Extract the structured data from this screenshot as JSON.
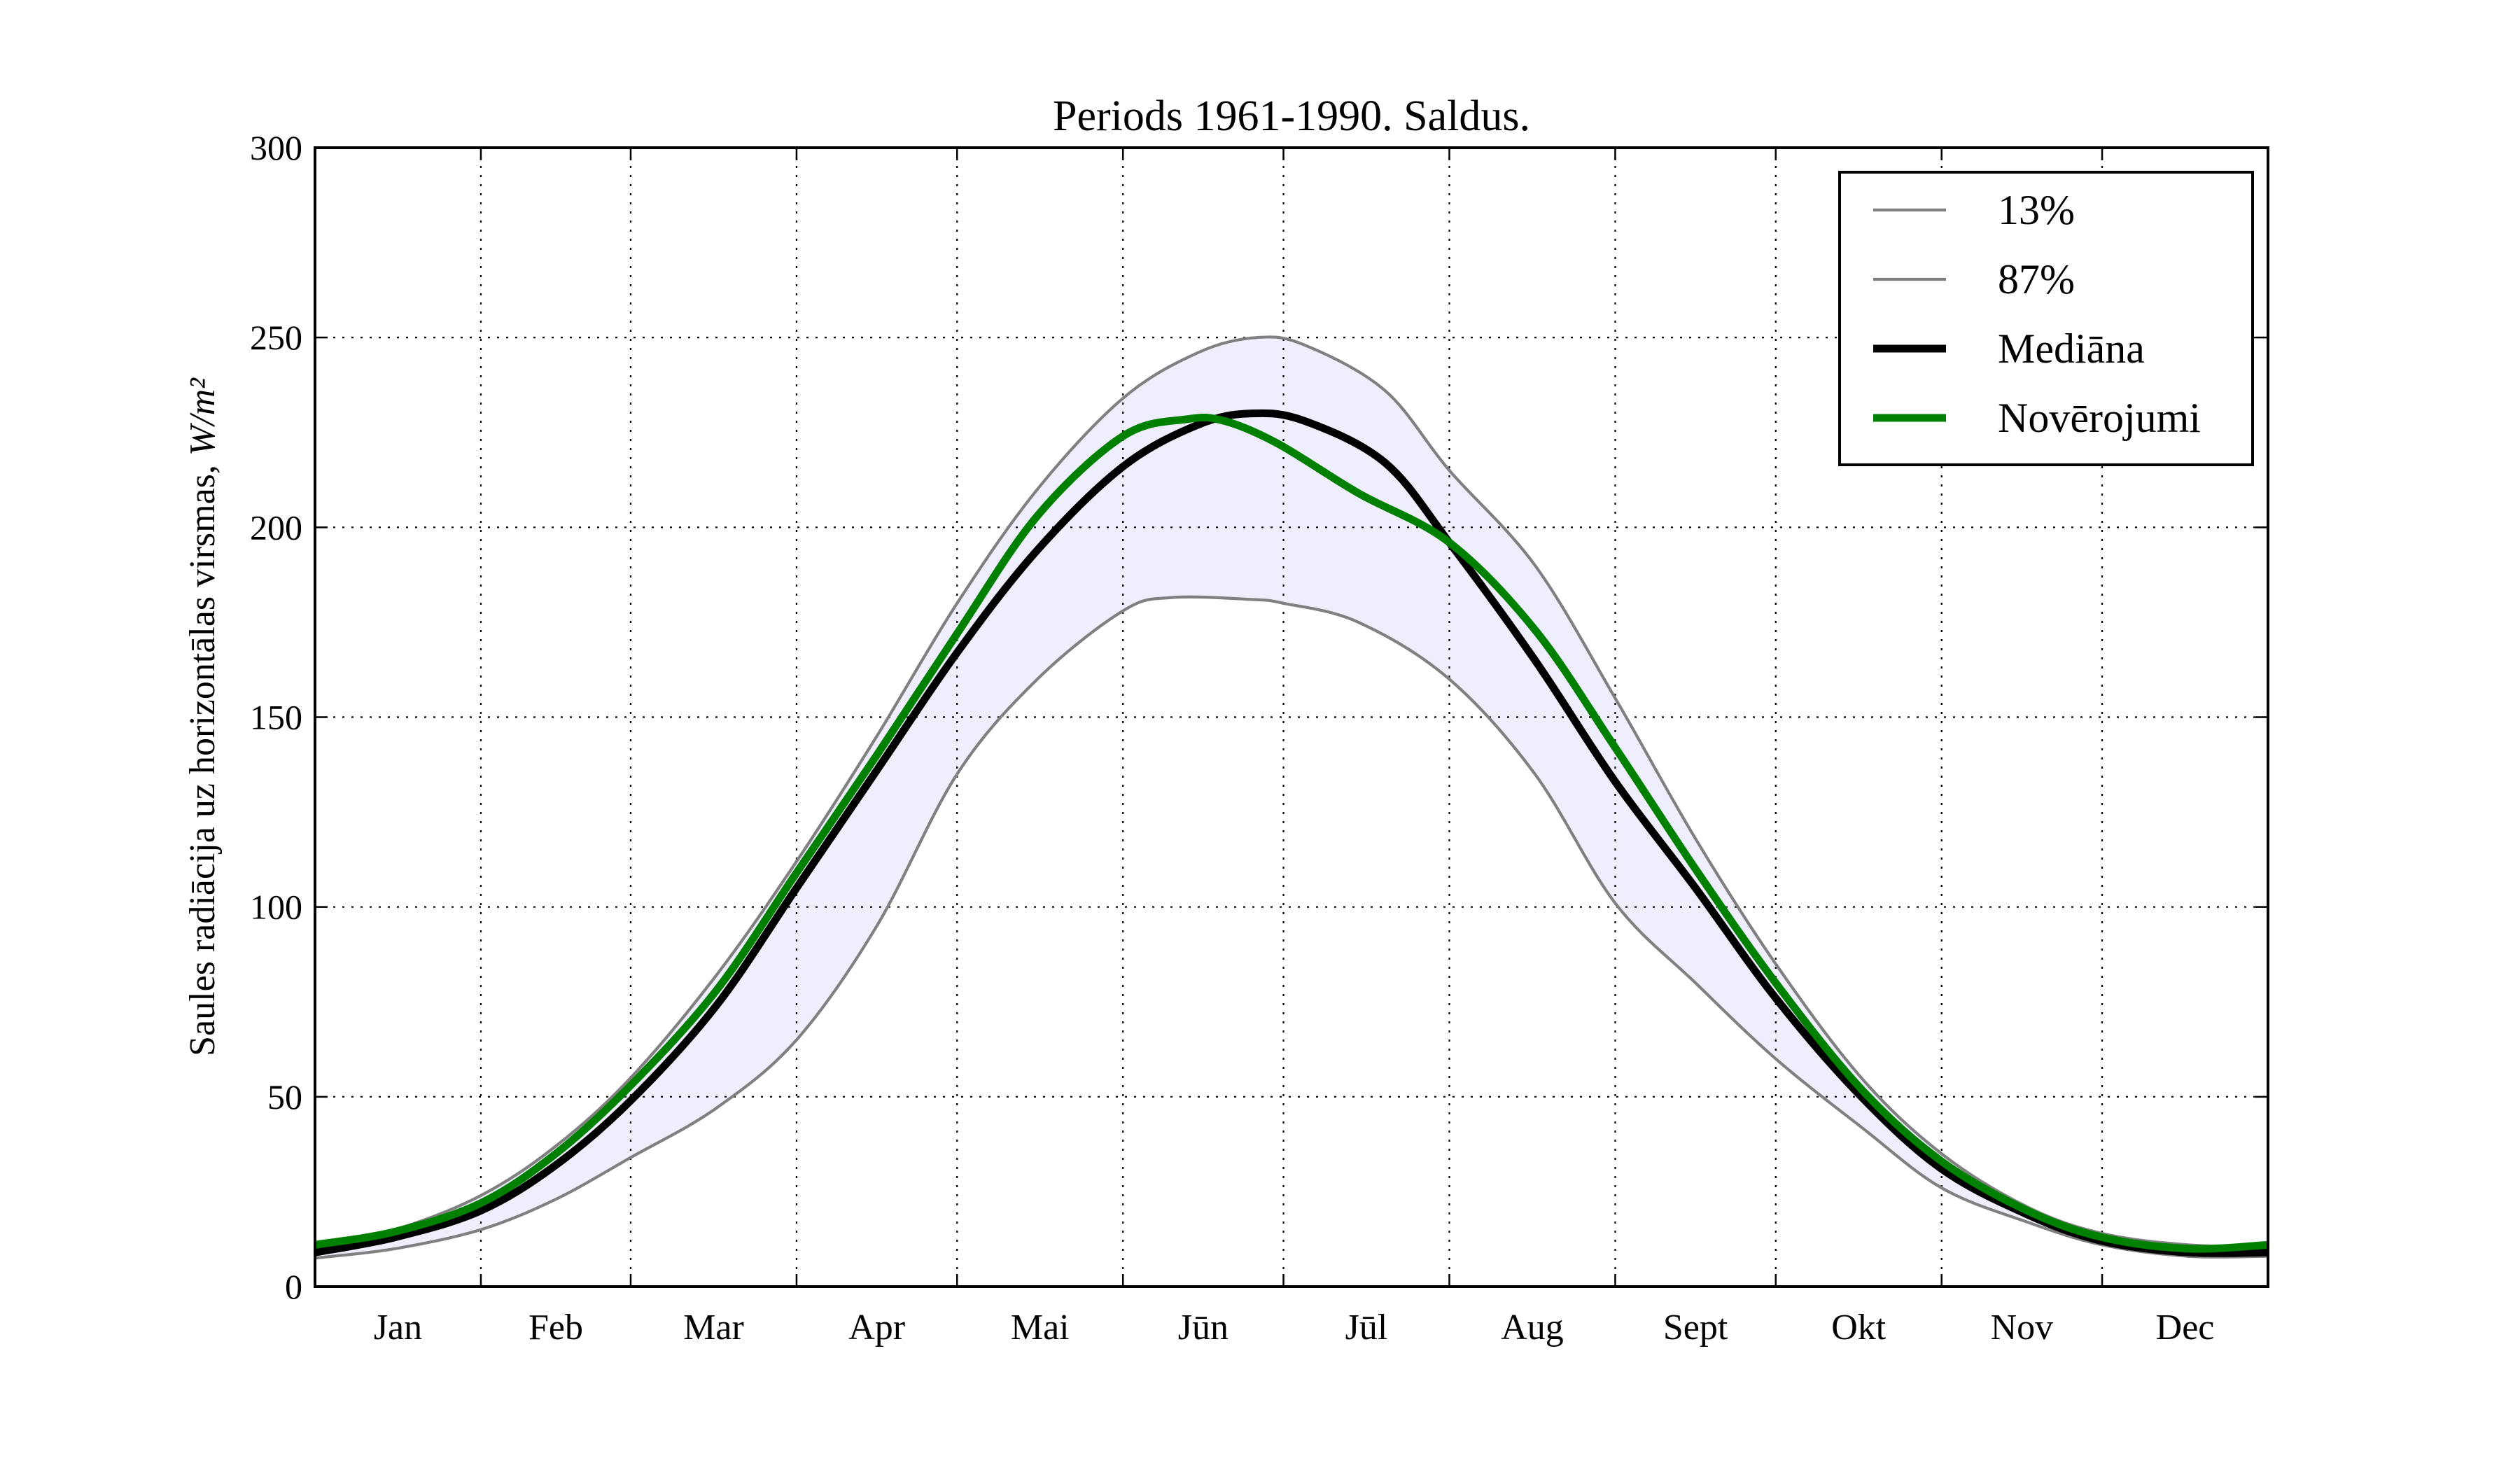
{
  "chart_data": {
    "type": "line",
    "title": "Periods 1961-1990. Saldus.",
    "xlabel": "",
    "ylabel": "Saules radiācija uz horizontālas virsmas, ",
    "ylabel_unit": "W/m²",
    "x_unit": "day of year",
    "xlim": [
      0,
      365
    ],
    "ylim": [
      0,
      300
    ],
    "yticks": [
      0,
      50,
      100,
      150,
      200,
      250,
      300
    ],
    "month_boundaries": [
      0,
      31,
      59,
      90,
      120,
      151,
      181,
      212,
      243,
      273,
      304,
      334,
      365
    ],
    "month_labels": [
      "Jan",
      "Feb",
      "Mar",
      "Apr",
      "Mai",
      "Jūn",
      "Jūl",
      "Aug",
      "Sept",
      "Okt",
      "Nov",
      "Dec"
    ],
    "grid": true,
    "legend_position": "top-right",
    "band": {
      "between": [
        "13%",
        "87%"
      ],
      "color": "#eeeefc"
    },
    "series": [
      {
        "name": "13%",
        "color": "#808080",
        "style": "thin",
        "x": [
          0,
          15,
          31,
          45,
          59,
          75,
          90,
          105,
          120,
          135,
          151,
          160,
          175,
          181,
          195,
          212,
          228,
          243,
          258,
          273,
          289,
          304,
          320,
          334,
          350,
          365
        ],
        "y": [
          7.5,
          10,
          15,
          23,
          34,
          47,
          65,
          95,
          135,
          160,
          178,
          181.5,
          181,
          180,
          175,
          160,
          135,
          101,
          80,
          60,
          42,
          26,
          17,
          11,
          8,
          8
        ]
      },
      {
        "name": "87%",
        "color": "#808080",
        "style": "thin",
        "x": [
          0,
          15,
          31,
          45,
          59,
          75,
          90,
          105,
          120,
          135,
          151,
          165,
          176,
          185,
          200,
          212,
          228,
          243,
          258,
          273,
          289,
          304,
          320,
          334,
          350,
          365
        ],
        "y": [
          10.5,
          15,
          24,
          37,
          55,
          82,
          112,
          145,
          180,
          210,
          234,
          246,
          250,
          248,
          236,
          215,
          190,
          155,
          118,
          85,
          55,
          35,
          21,
          14,
          11,
          10.5
        ]
      },
      {
        "name": "Mediāna",
        "color": "#000000",
        "style": "thick",
        "x": [
          0,
          15,
          31,
          45,
          59,
          75,
          90,
          105,
          120,
          135,
          151,
          165,
          175,
          185,
          200,
          212,
          228,
          243,
          258,
          273,
          289,
          304,
          320,
          334,
          350,
          365
        ],
        "y": [
          9,
          13,
          20,
          32,
          49,
          74,
          105,
          136,
          167,
          194,
          216,
          227,
          230,
          228,
          217,
          196,
          165,
          133,
          105,
          76,
          50,
          31,
          19,
          12,
          9,
          9
        ]
      },
      {
        "name": "Novērojumi",
        "color": "#008000",
        "style": "thick",
        "x": [
          0,
          15,
          31,
          45,
          59,
          75,
          90,
          105,
          120,
          135,
          151,
          163,
          170,
          180,
          195,
          212,
          228,
          243,
          258,
          273,
          289,
          304,
          320,
          334,
          350,
          365
        ],
        "y": [
          11,
          14.5,
          22,
          35,
          53,
          78,
          109,
          140,
          172,
          203,
          224,
          228.5,
          228,
          222,
          209,
          196,
          173,
          142,
          110,
          80,
          52,
          33,
          20,
          13,
          10,
          11
        ]
      }
    ]
  }
}
